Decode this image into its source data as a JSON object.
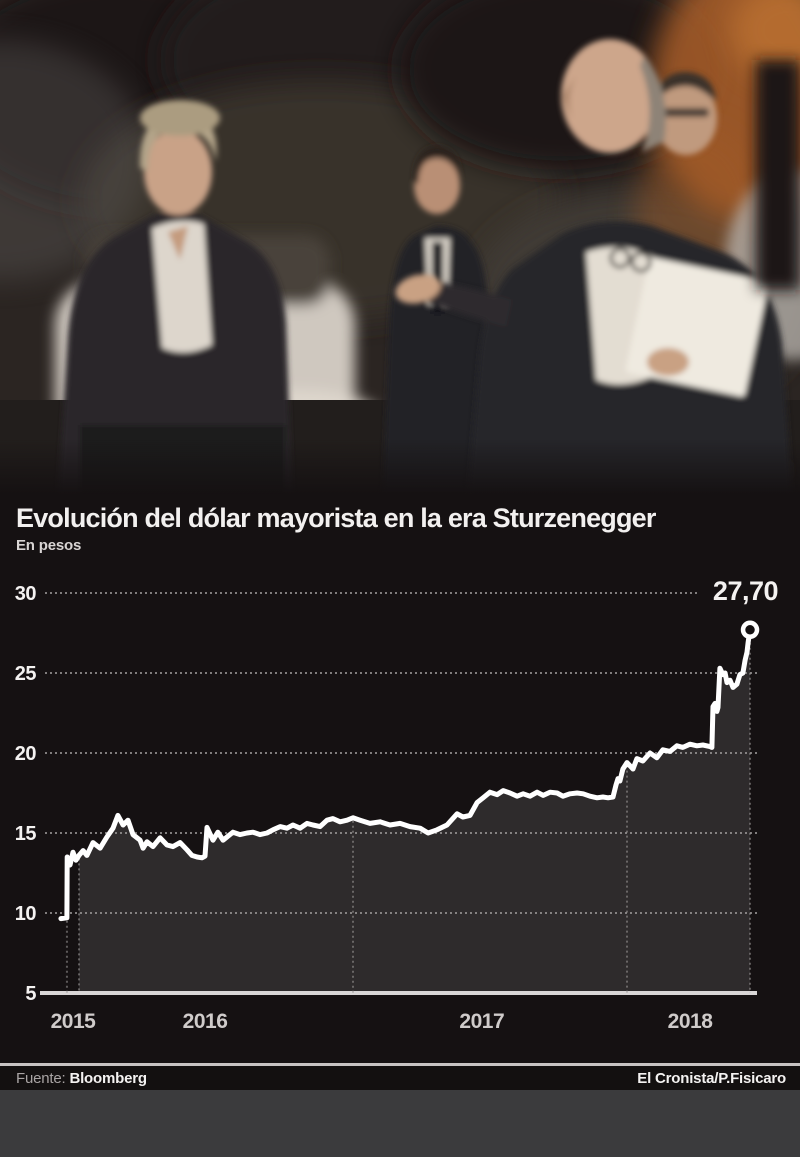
{
  "header": {
    "title": "Evolución del dólar mayorista en la era Sturzenegger",
    "subtitle": "En pesos"
  },
  "footer": {
    "source_label": "Fuente:",
    "source": "Bloomberg",
    "credit": "El Cronista/P.Fisicaro"
  },
  "colors": {
    "chart_background": "#151112",
    "area_fill": "#2e2b2c",
    "line": "#ffffff",
    "grid_dots": "#9b9898",
    "axis_baseline": "#d9d6d6",
    "tick_text": "#f4f2f1",
    "year_text": "#cfcbca",
    "photo_orange_glow": "#b4642a"
  },
  "chart_data": {
    "type": "line",
    "title": "Evolución del dólar mayorista en la era Sturzenegger",
    "subtitle": "En pesos",
    "ylabel": "pesos",
    "ylim": [
      5,
      30
    ],
    "yticks": [
      5,
      10,
      15,
      20,
      25,
      30
    ],
    "grid": "dotted",
    "x_domain_years": [
      2015.934,
      2018.449
    ],
    "xticks": [
      {
        "label": "2015",
        "t": 2015.978
      },
      {
        "label": "2016",
        "t": 2016.46
      },
      {
        "label": "2017",
        "t": 2017.47
      },
      {
        "label": "2018",
        "t": 2018.23
      }
    ],
    "vert_gridlines": [
      {
        "t": 2015.956,
        "from": 9.7
      },
      {
        "t": 2016.0,
        "from": 13.6
      },
      {
        "t": 2017.0,
        "from": 15.95
      },
      {
        "t": 2018.0,
        "from": 19.4
      },
      {
        "t": 2018.449,
        "from": 27.7
      }
    ],
    "end_label": "27,70",
    "end_value": 27.7,
    "series": [
      {
        "name": "Dólar mayorista",
        "points": [
          [
            2015.934,
            9.65
          ],
          [
            2015.956,
            9.7
          ],
          [
            2015.957,
            13.5
          ],
          [
            2015.967,
            13.0
          ],
          [
            2015.978,
            13.8
          ],
          [
            2015.989,
            13.3
          ],
          [
            2016.0,
            13.6
          ],
          [
            2016.015,
            13.9
          ],
          [
            2016.029,
            13.6
          ],
          [
            2016.051,
            14.4
          ],
          [
            2016.077,
            14.05
          ],
          [
            2016.102,
            14.75
          ],
          [
            2016.124,
            15.3
          ],
          [
            2016.142,
            16.1
          ],
          [
            2016.161,
            15.5
          ],
          [
            2016.179,
            15.8
          ],
          [
            2016.197,
            14.9
          ],
          [
            2016.223,
            14.55
          ],
          [
            2016.234,
            14.05
          ],
          [
            2016.248,
            14.45
          ],
          [
            2016.27,
            14.15
          ],
          [
            2016.296,
            14.7
          ],
          [
            2016.321,
            14.25
          ],
          [
            2016.343,
            14.15
          ],
          [
            2016.369,
            14.4
          ],
          [
            2016.394,
            13.95
          ],
          [
            2016.412,
            13.6
          ],
          [
            2016.431,
            13.5
          ],
          [
            2016.449,
            13.45
          ],
          [
            2016.46,
            13.55
          ],
          [
            2016.467,
            15.35
          ],
          [
            2016.489,
            14.55
          ],
          [
            2016.507,
            15.05
          ],
          [
            2016.526,
            14.55
          ],
          [
            2016.551,
            14.9
          ],
          [
            2016.562,
            15.05
          ],
          [
            2016.588,
            14.9
          ],
          [
            2016.613,
            15.0
          ],
          [
            2016.635,
            15.05
          ],
          [
            2016.661,
            14.9
          ],
          [
            2016.686,
            15.0
          ],
          [
            2016.708,
            15.2
          ],
          [
            2016.734,
            15.4
          ],
          [
            2016.759,
            15.3
          ],
          [
            2016.781,
            15.5
          ],
          [
            2016.807,
            15.3
          ],
          [
            2016.832,
            15.6
          ],
          [
            2016.854,
            15.5
          ],
          [
            2016.88,
            15.4
          ],
          [
            2016.905,
            15.8
          ],
          [
            2016.927,
            15.9
          ],
          [
            2016.953,
            15.7
          ],
          [
            2016.978,
            15.8
          ],
          [
            2017.0,
            15.95
          ],
          [
            2017.026,
            15.8
          ],
          [
            2017.062,
            15.6
          ],
          [
            2017.099,
            15.7
          ],
          [
            2017.135,
            15.5
          ],
          [
            2017.172,
            15.6
          ],
          [
            2017.208,
            15.4
          ],
          [
            2017.245,
            15.3
          ],
          [
            2017.274,
            15.0
          ],
          [
            2017.307,
            15.2
          ],
          [
            2017.343,
            15.5
          ],
          [
            2017.38,
            16.2
          ],
          [
            2017.401,
            16.0
          ],
          [
            2017.427,
            16.1
          ],
          [
            2017.453,
            16.9
          ],
          [
            2017.475,
            17.2
          ],
          [
            2017.5,
            17.55
          ],
          [
            2017.526,
            17.4
          ],
          [
            2017.548,
            17.65
          ],
          [
            2017.573,
            17.5
          ],
          [
            2017.599,
            17.3
          ],
          [
            2017.621,
            17.45
          ],
          [
            2017.646,
            17.3
          ],
          [
            2017.672,
            17.55
          ],
          [
            2017.694,
            17.35
          ],
          [
            2017.719,
            17.55
          ],
          [
            2017.745,
            17.5
          ],
          [
            2017.766,
            17.3
          ],
          [
            2017.792,
            17.45
          ],
          [
            2017.818,
            17.5
          ],
          [
            2017.84,
            17.45
          ],
          [
            2017.865,
            17.3
          ],
          [
            2017.891,
            17.2
          ],
          [
            2017.912,
            17.25
          ],
          [
            2017.931,
            17.2
          ],
          [
            2017.949,
            17.25
          ],
          [
            2017.96,
            18.0
          ],
          [
            2017.967,
            18.4
          ],
          [
            2017.974,
            18.25
          ],
          [
            2017.985,
            19.0
          ],
          [
            2018.0,
            19.4
          ],
          [
            2018.022,
            19.0
          ],
          [
            2018.036,
            19.65
          ],
          [
            2018.058,
            19.5
          ],
          [
            2018.084,
            20.0
          ],
          [
            2018.109,
            19.7
          ],
          [
            2018.131,
            20.2
          ],
          [
            2018.157,
            20.1
          ],
          [
            2018.182,
            20.45
          ],
          [
            2018.204,
            20.35
          ],
          [
            2018.23,
            20.55
          ],
          [
            2018.255,
            20.45
          ],
          [
            2018.277,
            20.5
          ],
          [
            2018.303,
            20.4
          ],
          [
            2018.31,
            20.35
          ],
          [
            2018.314,
            22.9
          ],
          [
            2018.321,
            23.1
          ],
          [
            2018.328,
            22.6
          ],
          [
            2018.332,
            22.85
          ],
          [
            2018.339,
            25.3
          ],
          [
            2018.35,
            24.9
          ],
          [
            2018.358,
            25.0
          ],
          [
            2018.365,
            24.4
          ],
          [
            2018.376,
            24.55
          ],
          [
            2018.387,
            24.1
          ],
          [
            2018.401,
            24.3
          ],
          [
            2018.412,
            24.9
          ],
          [
            2018.423,
            25.0
          ],
          [
            2018.431,
            25.8
          ],
          [
            2018.438,
            26.3
          ],
          [
            2018.442,
            26.9
          ],
          [
            2018.449,
            27.7
          ]
        ]
      }
    ]
  }
}
